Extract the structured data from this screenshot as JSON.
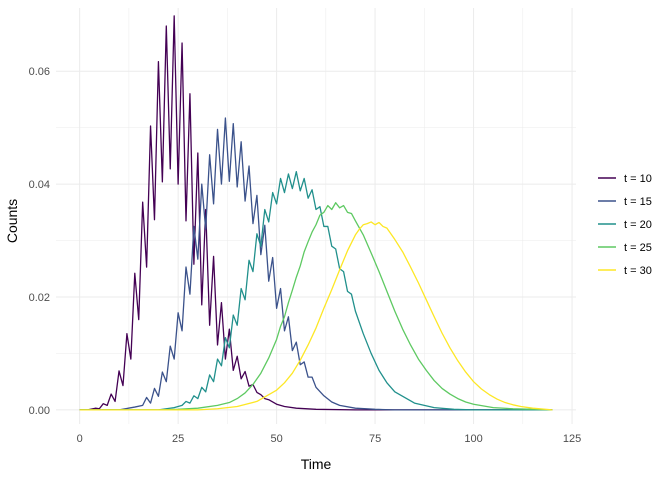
{
  "chart_data": {
    "type": "line",
    "xlabel": "Time",
    "ylabel": "Counts",
    "xlim": [
      -6,
      126
    ],
    "ylim": [
      -0.0025,
      0.0712
    ],
    "x_ticks": [
      0,
      25,
      50,
      75,
      100,
      125
    ],
    "x_tick_labels": [
      "0",
      "25",
      "50",
      "75",
      "100",
      "125"
    ],
    "y_ticks": [
      0.0,
      0.02,
      0.04,
      0.06
    ],
    "y_tick_labels": [
      "0.00",
      "0.02",
      "0.04",
      "0.06"
    ],
    "grid": true,
    "legend_position": "right",
    "x_range": [
      0,
      120
    ],
    "series": [
      {
        "name": "t = 10",
        "color": "#440154",
        "x": [
          0,
          2,
          4,
          5,
          6,
          7,
          8,
          9,
          10,
          11,
          12,
          13,
          14,
          15,
          16,
          17,
          18,
          19,
          20,
          21,
          22,
          23,
          24,
          25,
          26,
          27,
          28,
          29,
          30,
          31,
          32,
          33,
          34,
          35,
          36,
          37,
          38,
          39,
          40,
          41,
          42,
          43,
          44,
          45,
          46,
          47,
          48,
          50,
          52,
          55,
          60,
          70,
          80,
          120
        ],
        "values": [
          0,
          0,
          0.0003,
          0.0002,
          0.0011,
          0.0008,
          0.0028,
          0.0015,
          0.0069,
          0.0043,
          0.0135,
          0.009,
          0.0242,
          0.016,
          0.0368,
          0.0253,
          0.0503,
          0.0337,
          0.0617,
          0.0404,
          0.068,
          0.0427,
          0.0698,
          0.04,
          0.065,
          0.0335,
          0.056,
          0.0258,
          0.0455,
          0.0186,
          0.0355,
          0.015,
          0.0272,
          0.0115,
          0.019,
          0.009,
          0.0143,
          0.007,
          0.0095,
          0.0055,
          0.0068,
          0.0042,
          0.0045,
          0.0031,
          0.0027,
          0.002,
          0.0018,
          0.001,
          0.0006,
          0.0003,
          0.0001,
          0,
          0,
          0
        ]
      },
      {
        "name": "t = 15",
        "color": "#3b528b",
        "x": [
          0,
          10,
          14,
          16,
          17,
          18,
          19,
          20,
          21,
          22,
          23,
          24,
          25,
          26,
          27,
          28,
          29,
          30,
          31,
          32,
          33,
          34,
          35,
          36,
          37,
          38,
          39,
          40,
          41,
          42,
          43,
          44,
          45,
          46,
          47,
          48,
          49,
          50,
          51,
          52,
          53,
          54,
          55,
          56,
          57,
          58,
          59,
          60,
          62,
          64,
          66,
          70,
          75,
          80,
          90,
          120
        ],
        "values": [
          0,
          0,
          0.0005,
          0.0008,
          0.0022,
          0.0012,
          0.0038,
          0.0024,
          0.0067,
          0.005,
          0.0113,
          0.009,
          0.0172,
          0.014,
          0.0253,
          0.0205,
          0.0325,
          0.0267,
          0.04,
          0.032,
          0.0452,
          0.0365,
          0.0497,
          0.04,
          0.0517,
          0.0405,
          0.0507,
          0.0395,
          0.0475,
          0.037,
          0.0432,
          0.033,
          0.038,
          0.0275,
          0.0327,
          0.0228,
          0.027,
          0.018,
          0.0215,
          0.014,
          0.0165,
          0.0105,
          0.012,
          0.008,
          0.0085,
          0.0058,
          0.0058,
          0.004,
          0.0025,
          0.0014,
          0.0008,
          0.0003,
          0.0001,
          0,
          0,
          0
        ]
      },
      {
        "name": "t = 20",
        "color": "#21908c",
        "x": [
          0,
          20,
          24,
          26,
          27,
          28,
          29,
          30,
          31,
          32,
          33,
          34,
          35,
          36,
          37,
          38,
          39,
          40,
          41,
          42,
          43,
          44,
          45,
          46,
          47,
          48,
          49,
          50,
          51,
          52,
          53,
          54,
          55,
          56,
          57,
          58,
          59,
          60,
          61,
          62,
          63,
          64,
          65,
          66,
          67,
          68,
          69,
          70,
          72,
          74,
          76,
          78,
          80,
          85,
          90,
          95,
          100,
          110,
          120
        ],
        "values": [
          0,
          0,
          0.0004,
          0.0008,
          0.0015,
          0.0012,
          0.0025,
          0.002,
          0.004,
          0.0032,
          0.0062,
          0.005,
          0.009,
          0.0078,
          0.0128,
          0.011,
          0.0168,
          0.015,
          0.0215,
          0.0195,
          0.0265,
          0.0245,
          0.0312,
          0.029,
          0.0355,
          0.0333,
          0.0385,
          0.0365,
          0.041,
          0.0385,
          0.0418,
          0.0392,
          0.0422,
          0.0388,
          0.041,
          0.0375,
          0.039,
          0.0355,
          0.036,
          0.0325,
          0.0325,
          0.029,
          0.0285,
          0.025,
          0.0245,
          0.021,
          0.0205,
          0.0175,
          0.0135,
          0.01,
          0.007,
          0.0048,
          0.0032,
          0.0012,
          0.0004,
          0.0001,
          0,
          0,
          0
        ]
      },
      {
        "name": "t = 25",
        "color": "#5ec962",
        "x": [
          0,
          20,
          25,
          30,
          35,
          38,
          40,
          42,
          44,
          46,
          48,
          50,
          51,
          52,
          53,
          54,
          55,
          56,
          57,
          58,
          59,
          60,
          61,
          62,
          63,
          64,
          65,
          66,
          67,
          68,
          69,
          70,
          72,
          74,
          76,
          78,
          80,
          82,
          84,
          86,
          88,
          90,
          92,
          94,
          96,
          98,
          100,
          105,
          110,
          115,
          120
        ],
        "values": [
          0,
          0,
          0.0001,
          0.0003,
          0.0008,
          0.0013,
          0.002,
          0.003,
          0.0045,
          0.0065,
          0.0092,
          0.0125,
          0.0148,
          0.0165,
          0.019,
          0.0212,
          0.0235,
          0.0255,
          0.028,
          0.0298,
          0.0315,
          0.0328,
          0.0345,
          0.035,
          0.0362,
          0.0355,
          0.0367,
          0.0358,
          0.0362,
          0.035,
          0.0348,
          0.0335,
          0.031,
          0.0278,
          0.0245,
          0.021,
          0.0175,
          0.0143,
          0.0115,
          0.009,
          0.007,
          0.0052,
          0.0038,
          0.0028,
          0.002,
          0.0014,
          0.001,
          0.0004,
          0.0002,
          0.0001,
          0
        ]
      },
      {
        "name": "t = 30",
        "color": "#fde725",
        "x": [
          0,
          30,
          35,
          40,
          45,
          50,
          52,
          54,
          56,
          58,
          60,
          62,
          64,
          66,
          68,
          70,
          71,
          72,
          73,
          74,
          75,
          76,
          77,
          78,
          80,
          82,
          84,
          86,
          88,
          90,
          92,
          94,
          96,
          98,
          100,
          102,
          104,
          106,
          108,
          110,
          112,
          115,
          120
        ],
        "values": [
          0,
          0,
          0.0002,
          0.0006,
          0.0015,
          0.0035,
          0.0048,
          0.0065,
          0.0088,
          0.0115,
          0.0145,
          0.018,
          0.0213,
          0.0248,
          0.0282,
          0.031,
          0.032,
          0.0328,
          0.033,
          0.0333,
          0.0328,
          0.0332,
          0.0325,
          0.0322,
          0.0302,
          0.028,
          0.0253,
          0.0225,
          0.0195,
          0.0165,
          0.0136,
          0.011,
          0.0087,
          0.0067,
          0.005,
          0.0037,
          0.0027,
          0.0019,
          0.0013,
          0.0009,
          0.0006,
          0.0003,
          0
        ]
      }
    ]
  }
}
